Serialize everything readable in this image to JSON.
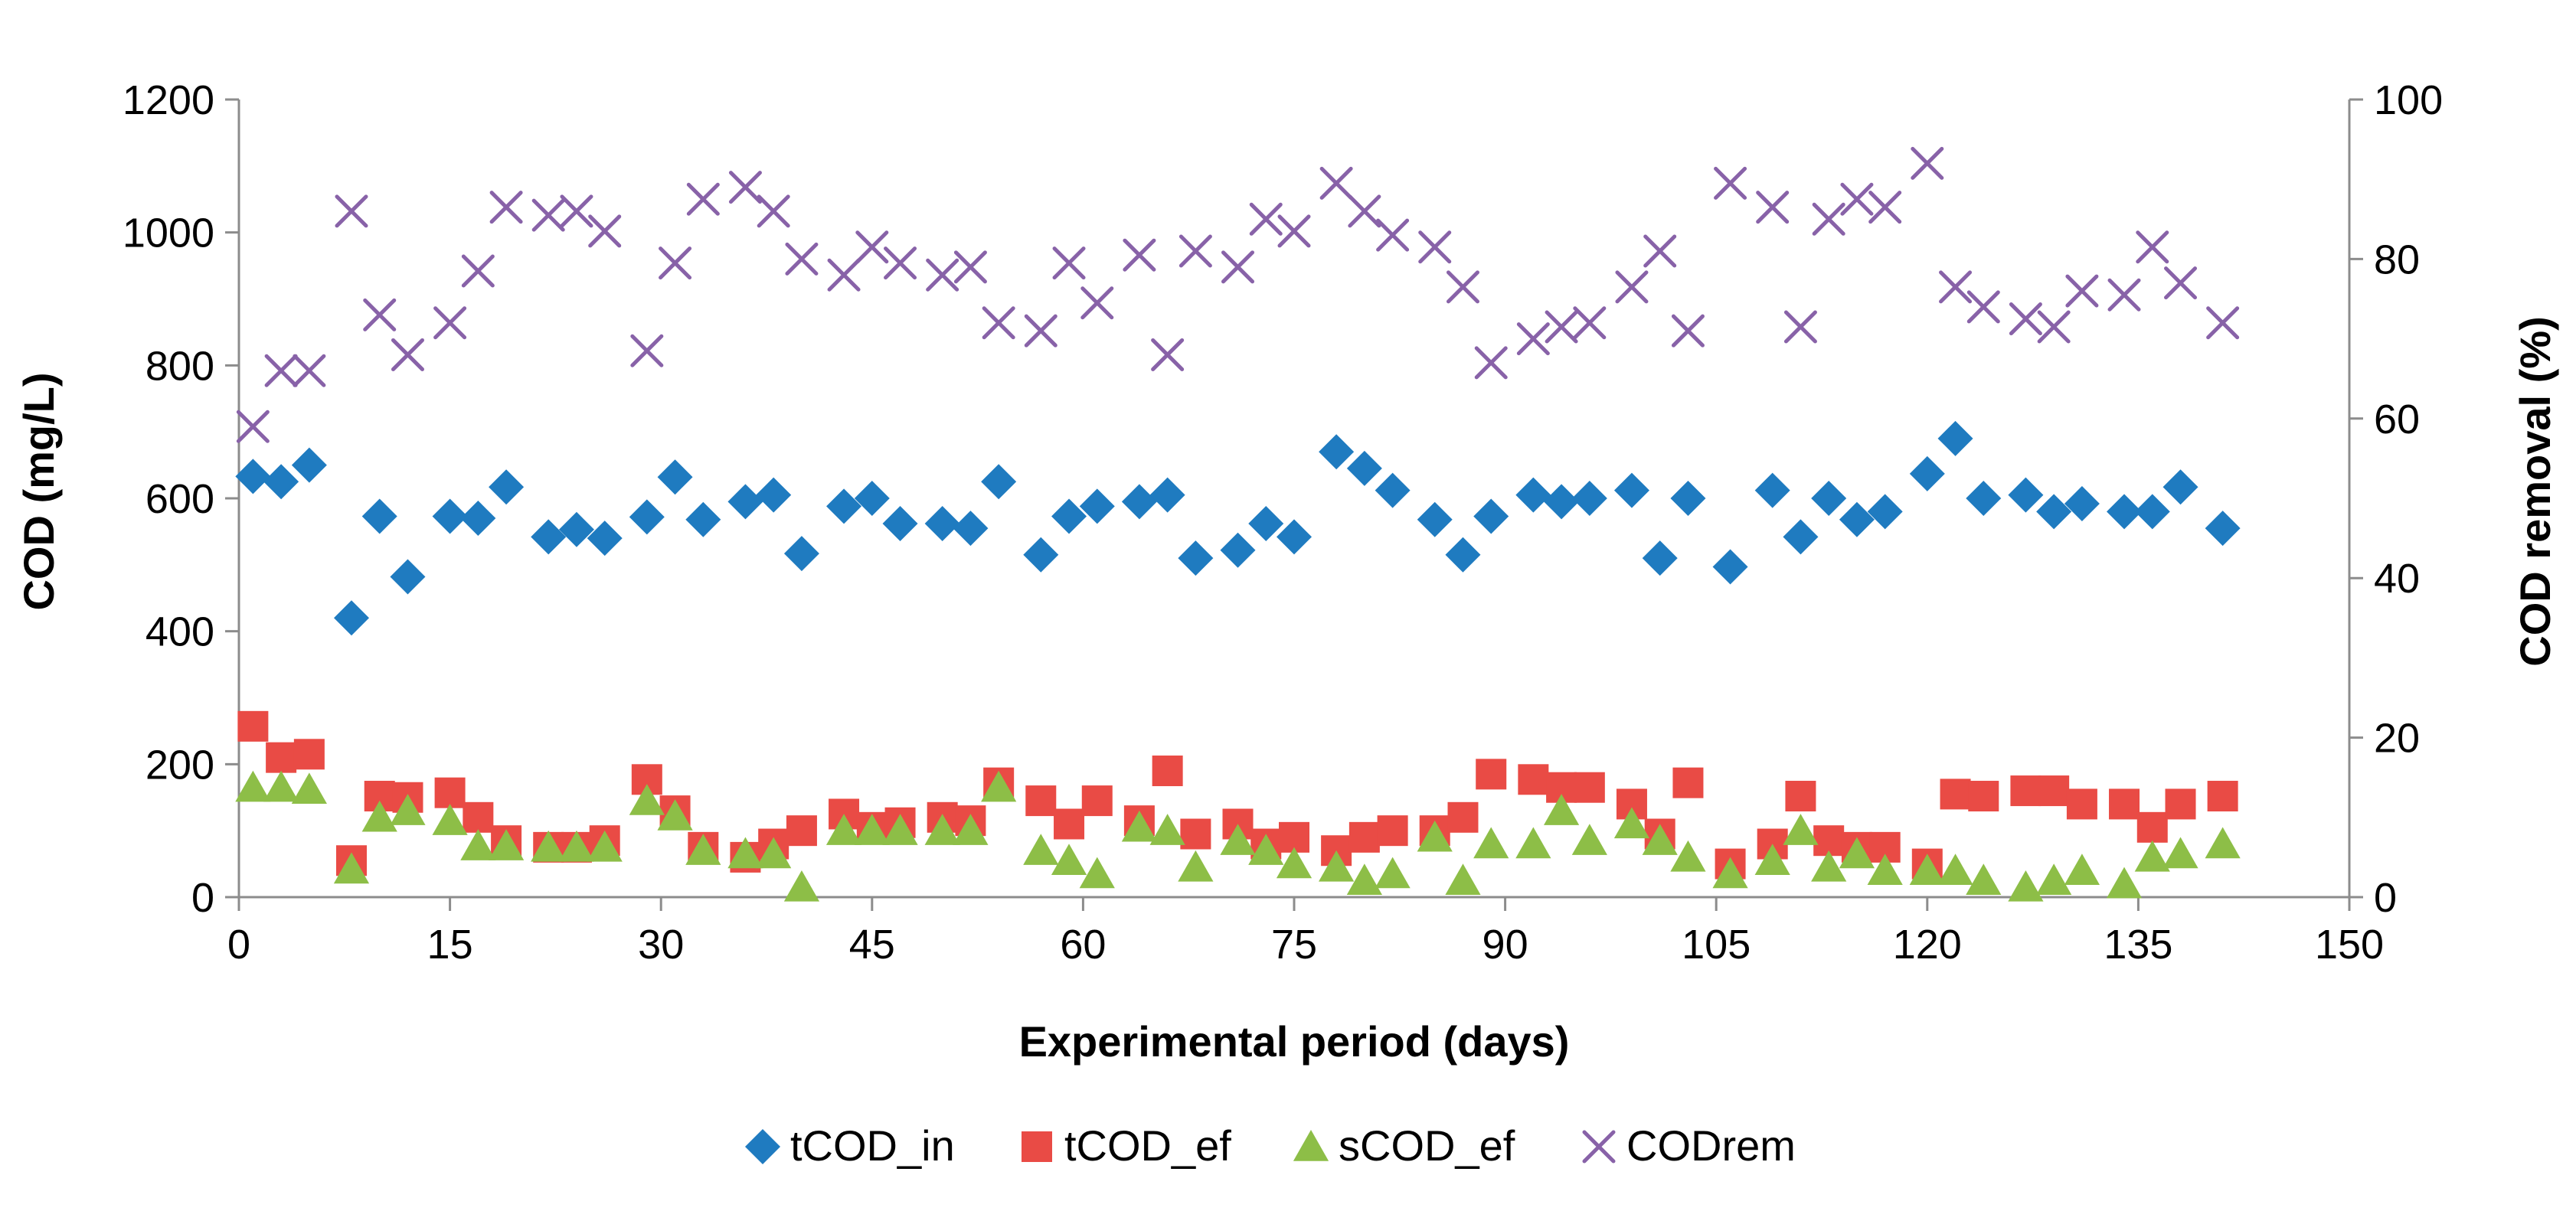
{
  "chart_data": {
    "type": "scatter",
    "xlabel": "Experimental period (days)",
    "ylabel_left": "COD (mg/L)",
    "ylabel_right": "COD removal (%)",
    "xlim": [
      0,
      150
    ],
    "ylim_left": [
      0,
      1200
    ],
    "ylim_right": [
      0,
      100
    ],
    "x_ticks": [
      "0",
      "15",
      "30",
      "45",
      "60",
      "75",
      "90",
      "105",
      "120",
      "135",
      "150"
    ],
    "y_ticks_left": [
      "0",
      "200",
      "400",
      "600",
      "800",
      "1000",
      "1200"
    ],
    "y_ticks_right": [
      "0",
      "20",
      "40",
      "60",
      "80",
      "100"
    ],
    "gridlines": false,
    "legend_position": "bottom",
    "series": [
      {
        "name": "tCOD_in",
        "axis": "left",
        "marker": "diamond",
        "color": "#1F7BC0",
        "points": [
          [
            1,
            633
          ],
          [
            3,
            625
          ],
          [
            5,
            650
          ],
          [
            8,
            420
          ],
          [
            10,
            573
          ],
          [
            12,
            482
          ],
          [
            15,
            573
          ],
          [
            17,
            570
          ],
          [
            19,
            617
          ],
          [
            22,
            542
          ],
          [
            24,
            553
          ],
          [
            26,
            540
          ],
          [
            29,
            572
          ],
          [
            31,
            632
          ],
          [
            33,
            568
          ],
          [
            36,
            595
          ],
          [
            38,
            605
          ],
          [
            40,
            517
          ],
          [
            43,
            588
          ],
          [
            45,
            600
          ],
          [
            47,
            562
          ],
          [
            50,
            562
          ],
          [
            52,
            555
          ],
          [
            54,
            625
          ],
          [
            57,
            515
          ],
          [
            59,
            573
          ],
          [
            61,
            588
          ],
          [
            64,
            595
          ],
          [
            66,
            605
          ],
          [
            68,
            510
          ],
          [
            71,
            522
          ],
          [
            73,
            562
          ],
          [
            75,
            542
          ],
          [
            78,
            670
          ],
          [
            80,
            645
          ],
          [
            82,
            612
          ],
          [
            85,
            568
          ],
          [
            87,
            515
          ],
          [
            89,
            573
          ],
          [
            92,
            605
          ],
          [
            94,
            595
          ],
          [
            96,
            600
          ],
          [
            99,
            612
          ],
          [
            101,
            510
          ],
          [
            103,
            600
          ],
          [
            106,
            497
          ],
          [
            109,
            612
          ],
          [
            111,
            542
          ],
          [
            113,
            600
          ],
          [
            115,
            568
          ],
          [
            117,
            580
          ],
          [
            120,
            637
          ],
          [
            122,
            690
          ],
          [
            124,
            600
          ],
          [
            127,
            605
          ],
          [
            129,
            580
          ],
          [
            131,
            592
          ],
          [
            134,
            580
          ],
          [
            136,
            580
          ],
          [
            138,
            617
          ],
          [
            141,
            555
          ]
        ]
      },
      {
        "name": "tCOD_ef",
        "axis": "left",
        "marker": "square",
        "color": "#E94B45",
        "points": [
          [
            1,
            257
          ],
          [
            3,
            210
          ],
          [
            5,
            215
          ],
          [
            8,
            55
          ],
          [
            10,
            152
          ],
          [
            12,
            150
          ],
          [
            15,
            157
          ],
          [
            17,
            120
          ],
          [
            19,
            85
          ],
          [
            22,
            75
          ],
          [
            24,
            75
          ],
          [
            26,
            85
          ],
          [
            29,
            177
          ],
          [
            31,
            130
          ],
          [
            33,
            75
          ],
          [
            36,
            60
          ],
          [
            38,
            80
          ],
          [
            40,
            100
          ],
          [
            43,
            125
          ],
          [
            45,
            105
          ],
          [
            47,
            112
          ],
          [
            50,
            120
          ],
          [
            52,
            115
          ],
          [
            54,
            172
          ],
          [
            57,
            145
          ],
          [
            59,
            110
          ],
          [
            61,
            145
          ],
          [
            64,
            115
          ],
          [
            66,
            190
          ],
          [
            68,
            95
          ],
          [
            71,
            110
          ],
          [
            73,
            80
          ],
          [
            75,
            90
          ],
          [
            78,
            70
          ],
          [
            80,
            90
          ],
          [
            82,
            100
          ],
          [
            85,
            100
          ],
          [
            87,
            120
          ],
          [
            89,
            185
          ],
          [
            92,
            177
          ],
          [
            94,
            165
          ],
          [
            96,
            165
          ],
          [
            99,
            140
          ],
          [
            101,
            95
          ],
          [
            103,
            172
          ],
          [
            106,
            50
          ],
          [
            109,
            80
          ],
          [
            111,
            152
          ],
          [
            113,
            85
          ],
          [
            115,
            75
          ],
          [
            117,
            75
          ],
          [
            120,
            50
          ],
          [
            122,
            155
          ],
          [
            124,
            152
          ],
          [
            127,
            160
          ],
          [
            129,
            160
          ],
          [
            131,
            140
          ],
          [
            134,
            140
          ],
          [
            136,
            105
          ],
          [
            138,
            140
          ],
          [
            141,
            152
          ]
        ]
      },
      {
        "name": "sCOD_ef",
        "axis": "left",
        "marker": "triangle",
        "color": "#8DBE47",
        "points": [
          [
            1,
            165
          ],
          [
            3,
            165
          ],
          [
            5,
            162
          ],
          [
            8,
            42
          ],
          [
            10,
            120
          ],
          [
            12,
            130
          ],
          [
            15,
            115
          ],
          [
            17,
            77
          ],
          [
            19,
            77
          ],
          [
            22,
            75
          ],
          [
            24,
            75
          ],
          [
            26,
            75
          ],
          [
            29,
            145
          ],
          [
            31,
            122
          ],
          [
            33,
            70
          ],
          [
            36,
            65
          ],
          [
            38,
            65
          ],
          [
            40,
            15
          ],
          [
            43,
            100
          ],
          [
            45,
            100
          ],
          [
            47,
            100
          ],
          [
            50,
            100
          ],
          [
            52,
            100
          ],
          [
            54,
            165
          ],
          [
            57,
            70
          ],
          [
            59,
            55
          ],
          [
            61,
            35
          ],
          [
            64,
            105
          ],
          [
            66,
            100
          ],
          [
            68,
            45
          ],
          [
            71,
            85
          ],
          [
            73,
            70
          ],
          [
            75,
            50
          ],
          [
            78,
            45
          ],
          [
            80,
            25
          ],
          [
            82,
            35
          ],
          [
            85,
            90
          ],
          [
            87,
            25
          ],
          [
            89,
            80
          ],
          [
            92,
            80
          ],
          [
            94,
            130
          ],
          [
            96,
            85
          ],
          [
            99,
            110
          ],
          [
            101,
            85
          ],
          [
            103,
            60
          ],
          [
            106,
            35
          ],
          [
            109,
            55
          ],
          [
            111,
            100
          ],
          [
            113,
            45
          ],
          [
            115,
            65
          ],
          [
            117,
            40
          ],
          [
            120,
            40
          ],
          [
            122,
            40
          ],
          [
            124,
            25
          ],
          [
            127,
            15
          ],
          [
            129,
            25
          ],
          [
            131,
            40
          ],
          [
            134,
            20
          ],
          [
            136,
            60
          ],
          [
            138,
            65
          ],
          [
            141,
            80
          ]
        ]
      },
      {
        "name": "CODrem",
        "axis": "right",
        "marker": "x",
        "color": "#8862A8",
        "points": [
          [
            1,
            59
          ],
          [
            3,
            66
          ],
          [
            5,
            66
          ],
          [
            8,
            86
          ],
          [
            10,
            73
          ],
          [
            12,
            68
          ],
          [
            15,
            72
          ],
          [
            17,
            78.5
          ],
          [
            19,
            86.5
          ],
          [
            22,
            85.5
          ],
          [
            24,
            86
          ],
          [
            26,
            83.5
          ],
          [
            29,
            68.5
          ],
          [
            31,
            79.5
          ],
          [
            33,
            87.5
          ],
          [
            36,
            89
          ],
          [
            38,
            86
          ],
          [
            40,
            80
          ],
          [
            43,
            78
          ],
          [
            45,
            81.5
          ],
          [
            47,
            79.5
          ],
          [
            50,
            78
          ],
          [
            52,
            79
          ],
          [
            54,
            72
          ],
          [
            57,
            71
          ],
          [
            59,
            79.5
          ],
          [
            61,
            74.5
          ],
          [
            64,
            80.5
          ],
          [
            66,
            68
          ],
          [
            68,
            81
          ],
          [
            71,
            79
          ],
          [
            73,
            85
          ],
          [
            75,
            83.5
          ],
          [
            78,
            89.5
          ],
          [
            80,
            86
          ],
          [
            82,
            83
          ],
          [
            85,
            81.5
          ],
          [
            87,
            76.5
          ],
          [
            89,
            67
          ],
          [
            92,
            70
          ],
          [
            94,
            71.5
          ],
          [
            96,
            72
          ],
          [
            99,
            76.5
          ],
          [
            101,
            81
          ],
          [
            103,
            71
          ],
          [
            106,
            89.5
          ],
          [
            109,
            86.5
          ],
          [
            111,
            71.5
          ],
          [
            113,
            85
          ],
          [
            115,
            87.5
          ],
          [
            117,
            86.5
          ],
          [
            120,
            92
          ],
          [
            122,
            76.5
          ],
          [
            124,
            74
          ],
          [
            127,
            72.5
          ],
          [
            129,
            71.5
          ],
          [
            131,
            76
          ],
          [
            134,
            75.5
          ],
          [
            136,
            81.5
          ],
          [
            138,
            77
          ],
          [
            141,
            72
          ]
        ]
      }
    ]
  }
}
